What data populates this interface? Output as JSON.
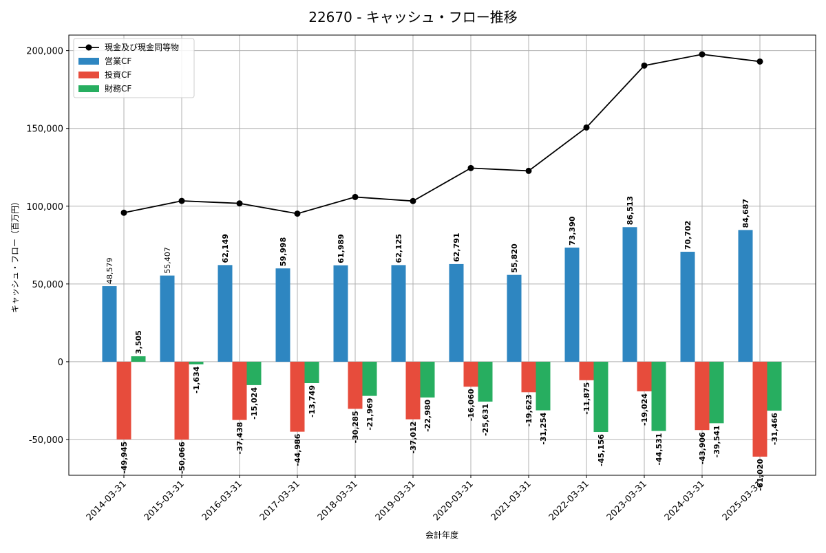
{
  "chart_data": {
    "type": "bar",
    "title": "22670 - キャッシュ・フロー推移",
    "xlabel": "会計年度",
    "ylabel": "キャッシュ・フロー（百万円）",
    "categories": [
      "2014-03-31",
      "2015-03-31",
      "2016-03-31",
      "2017-03-31",
      "2018-03-31",
      "2019-03-31",
      "2020-03-31",
      "2021-03-31",
      "2022-03-31",
      "2023-03-31",
      "2024-03-31",
      "2025-03-31"
    ],
    "ylim": [
      -73000,
      210000
    ],
    "yticks": [
      -50000,
      0,
      50000,
      100000,
      150000,
      200000
    ],
    "ytick_labels": [
      "-50,000",
      "0",
      "50,000",
      "100,000",
      "150,000",
      "200,000"
    ],
    "grid": true,
    "legend_position": "upper-left",
    "series": [
      {
        "name": "営業CF",
        "kind": "bar",
        "color": "#2e86c1",
        "values": [
          48579,
          55407,
          62149,
          59998,
          61989,
          62125,
          62791,
          55820,
          73390,
          86513,
          70702,
          84687
        ],
        "labels": [
          "48,579",
          "55,407",
          "62,149",
          "59,998",
          "61,989",
          "62,125",
          "62,791",
          "55,820",
          "73,390",
          "86,513",
          "70,702",
          "84,687"
        ]
      },
      {
        "name": "投資CF",
        "kind": "bar",
        "color": "#e74c3c",
        "values": [
          -49945,
          -50066,
          -37438,
          -44986,
          -30285,
          -37012,
          -16060,
          -19623,
          -11875,
          -19024,
          -43906,
          -61020
        ],
        "labels": [
          "-49,945",
          "-50,066",
          "-37,438",
          "-44,986",
          "-30,285",
          "-37,012",
          "-16,060",
          "-19,623",
          "-11,875",
          "-19,024",
          "-43,906",
          "-61,020"
        ]
      },
      {
        "name": "財務CF",
        "kind": "bar",
        "color": "#27ae60",
        "values": [
          3505,
          -1634,
          -15024,
          -13749,
          -21969,
          -22980,
          -25631,
          -31254,
          -45156,
          -44531,
          -39541,
          -31466
        ],
        "labels": [
          "3,505",
          "-1,634",
          "-15,024",
          "-13,749",
          "-21,969",
          "-22,980",
          "-25,631",
          "-31,254",
          "-45,156",
          "-44,531",
          "-39,541",
          "-31,466"
        ]
      },
      {
        "name": "現金及び現金同等物",
        "kind": "line",
        "color": "#000000",
        "values": [
          95800,
          103400,
          101800,
          95200,
          105900,
          103300,
          124500,
          122700,
          150600,
          190400,
          197600,
          193000
        ]
      }
    ]
  }
}
